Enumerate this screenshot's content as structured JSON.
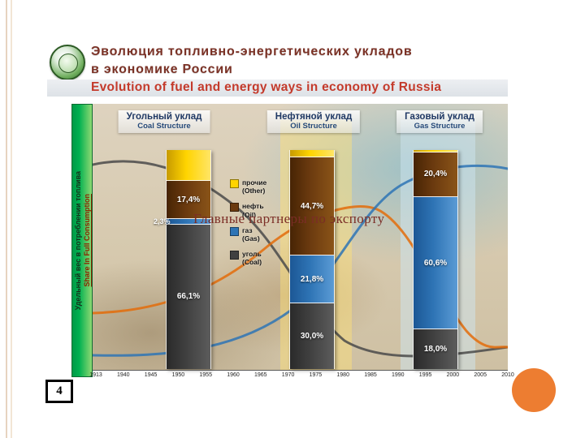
{
  "slide": {
    "title_ru_line1": "Эволюция топливно-энергетических укладов",
    "title_ru_line2": "в экономике России",
    "title_en": "Evolution of fuel and energy ways in economy of Russia",
    "overlay_text": "Главные партнеры по экспорту",
    "page_number": "4"
  },
  "colors": {
    "accent_circle": "#ED7D31",
    "ylabel_bar_green": "#00B050",
    "title_ru_color": "#7B3226",
    "title_en_color": "#C43A2B"
  },
  "chart_data": {
    "type": "bar",
    "stacked": true,
    "unit": "%",
    "ylim": [
      0,
      100
    ],
    "title_ru": "Эволюция топливно-энергетических укладов в экономике России",
    "title_en": "Evolution of fuel and energy ways in economy of Russia",
    "ylabel_ru": "Удельный вес в потреблении топлива",
    "ylabel_en": "Share In Full Consumption",
    "x_ticks": [
      "1913",
      "1940",
      "1945",
      "1950",
      "1955",
      "1960",
      "1965",
      "1970",
      "1975",
      "1980",
      "1985",
      "1990",
      "1995",
      "2000",
      "2005",
      "2010"
    ],
    "legend": [
      {
        "key": "other",
        "label": "прочие (Other)",
        "color": "#FFD400"
      },
      {
        "key": "oil",
        "label": "нефть (Oil)",
        "color": "#6B3A0F"
      },
      {
        "key": "gas",
        "label": "газ (Gas)",
        "color": "#2E74B5"
      },
      {
        "key": "coal",
        "label": "уголь (Coal)",
        "color": "#404040"
      }
    ],
    "groups": [
      {
        "title_ru": "Угольный уклад",
        "title_en": "Coal Structure",
        "segments": [
          {
            "key": "other",
            "value": 14.2,
            "label": ""
          },
          {
            "key": "oil",
            "value": 17.4,
            "label": "17,4%"
          },
          {
            "key": "gas",
            "value": 2.3,
            "label": "2,3%"
          },
          {
            "key": "coal",
            "value": 66.1,
            "label": "66,1%"
          }
        ]
      },
      {
        "title_ru": "Нефтяной уклад",
        "title_en": "Oil Structure",
        "segments": [
          {
            "key": "other",
            "value": 3.5,
            "label": ""
          },
          {
            "key": "oil",
            "value": 44.7,
            "label": "44,7%"
          },
          {
            "key": "gas",
            "value": 21.8,
            "label": "21,8%"
          },
          {
            "key": "coal",
            "value": 30.0,
            "label": "30,0%"
          }
        ]
      },
      {
        "title_ru": "Газовый уклад",
        "title_en": "Gas Structure",
        "segments": [
          {
            "key": "other",
            "value": 1.0,
            "label": ""
          },
          {
            "key": "oil",
            "value": 20.4,
            "label": "20,4%"
          },
          {
            "key": "gas",
            "value": 60.6,
            "label": "60,6%"
          },
          {
            "key": "coal",
            "value": 18.0,
            "label": "18,0%"
          }
        ]
      }
    ],
    "trend_lines": [
      {
        "key": "coal-trend",
        "color": "#4a4a4a"
      },
      {
        "key": "oil-trend",
        "color": "#e36c0a"
      },
      {
        "key": "gas-trend",
        "color": "#2e74b5"
      }
    ]
  }
}
